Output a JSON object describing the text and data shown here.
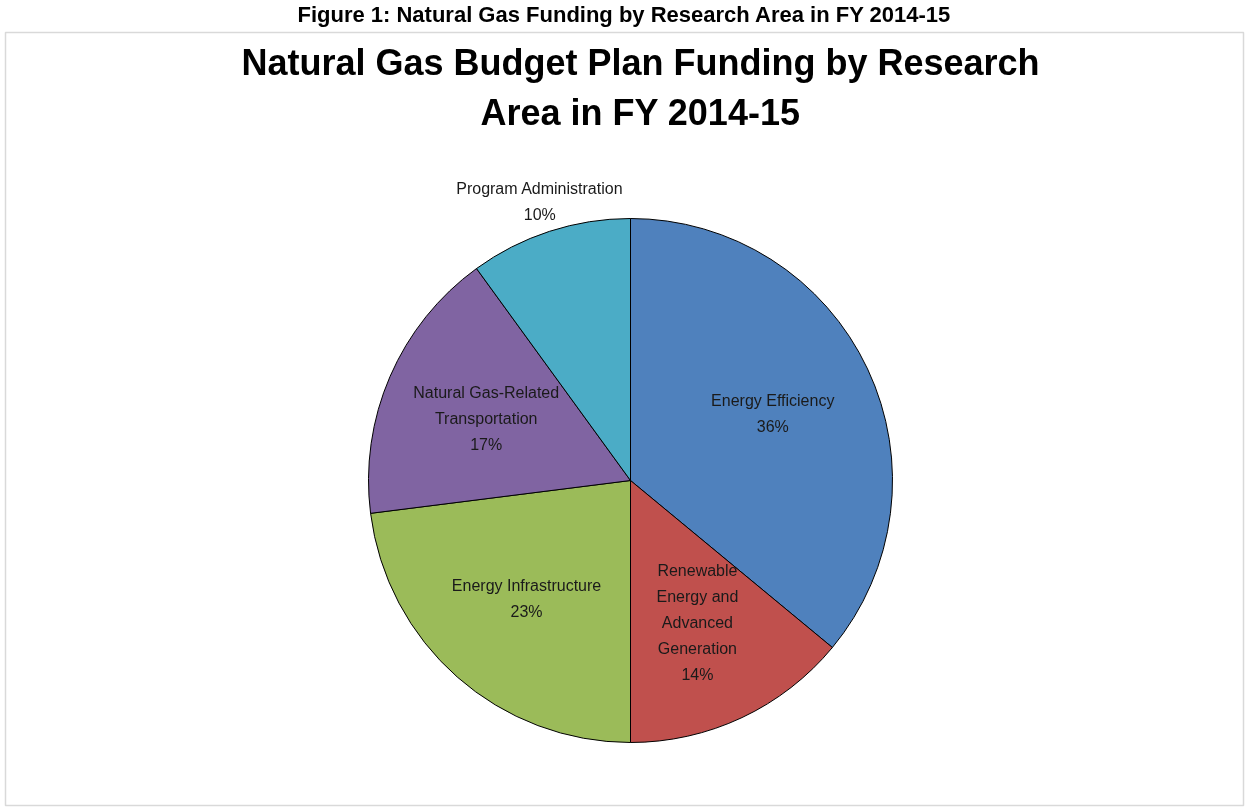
{
  "chart_data": {
    "type": "pie",
    "title": "Natural Gas Budget Plan Funding by Research Area in FY 2014-15",
    "annotations": [
      "Figure 1: Natural Gas Funding by Research Area in FY 2014-15"
    ],
    "categories": [
      "Energy Efficiency",
      "Renewable Energy and Advanced Generation",
      "Energy Infrastructure",
      "Natural Gas-Related Transportation",
      "Program Administration"
    ],
    "values": [
      36,
      14,
      23,
      17,
      10
    ],
    "value_labels": [
      "36%",
      "14%",
      "23%",
      "17%",
      "10%"
    ],
    "colors": [
      "#4f81bd",
      "#c0504d",
      "#9bbb59",
      "#8064a2",
      "#4bacc6"
    ],
    "legend": false
  }
}
